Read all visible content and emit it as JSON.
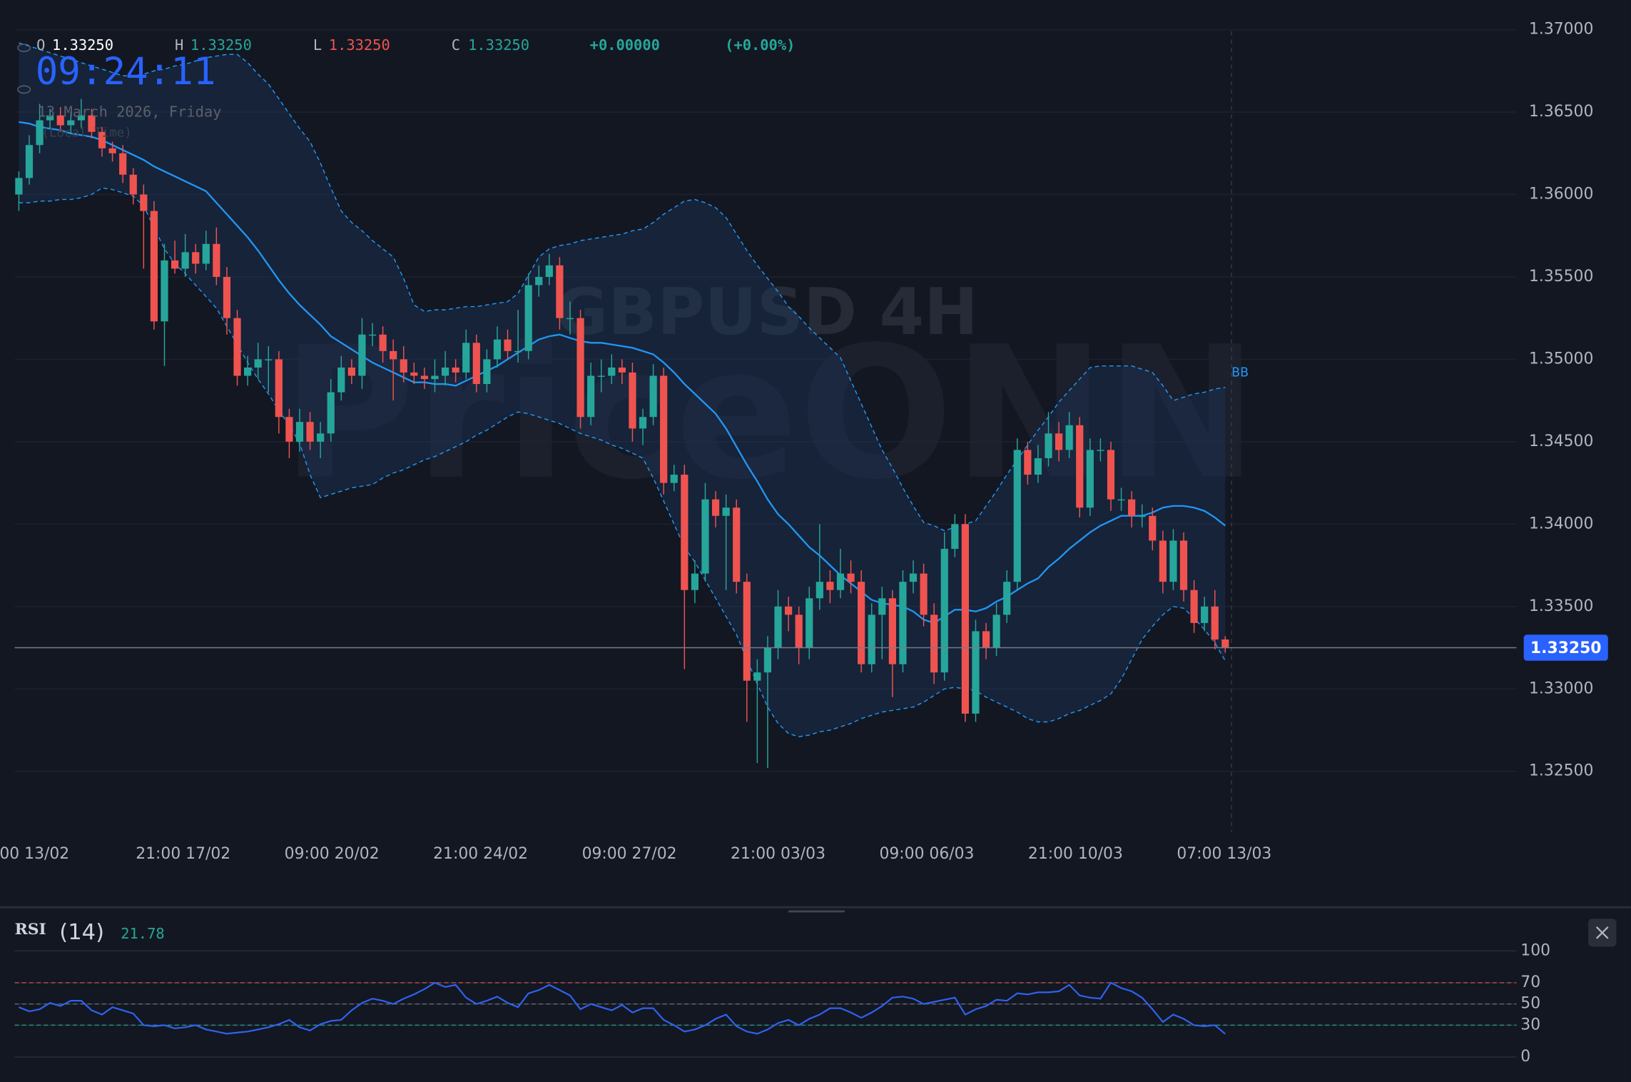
{
  "chart_data": {
    "type": "candlestick",
    "title": "GBPUSD 4H",
    "watermark": "PriceONN",
    "clock": "09:24:11",
    "date": "13 March 2026, Friday",
    "timezone": "(Local Time)",
    "legend": {
      "o_label": "O",
      "o": "1.33250",
      "h_label": "H",
      "h": "1.33250",
      "l_label": "L",
      "l": "1.33250",
      "c_label": "C",
      "c": "1.33250",
      "change": "+0.00000",
      "change_pct": "(+0.00%)"
    },
    "colors": {
      "up": "#26a69a",
      "down": "#ef5350"
    },
    "ylim": [
      1.3213,
      1.3718
    ],
    "yticks": [
      {
        "value": 1.37,
        "label": "1.37000"
      },
      {
        "value": 1.365,
        "label": "1.36500"
      },
      {
        "value": 1.36,
        "label": "1.36000"
      },
      {
        "value": 1.355,
        "label": "1.35500"
      },
      {
        "value": 1.35,
        "label": "1.35000"
      },
      {
        "value": 1.345,
        "label": "1.34500"
      },
      {
        "value": 1.34,
        "label": "1.34000"
      },
      {
        "value": 1.335,
        "label": "1.33500"
      },
      {
        "value": 1.33,
        "label": "1.33000"
      },
      {
        "value": 1.325,
        "label": "1.32500"
      }
    ],
    "grid": true,
    "xtick_labels": [
      "00 13/02",
      "21:00 17/02",
      "09:00 20/02",
      "21:00 24/02",
      "09:00 27/02",
      "21:00 03/03",
      "09:00 06/03",
      "21:00 10/03",
      "07:00 13/03"
    ],
    "last_price": {
      "value": 1.3325,
      "label": "1.33250"
    },
    "ohlc": [
      [
        1.36,
        1.3614,
        1.359,
        1.361
      ],
      [
        1.361,
        1.3636,
        1.3606,
        1.363
      ],
      [
        1.363,
        1.3655,
        1.3625,
        1.3645
      ],
      [
        1.3645,
        1.3652,
        1.364,
        1.3648
      ],
      [
        1.3648,
        1.3653,
        1.3638,
        1.3642
      ],
      [
        1.3642,
        1.365,
        1.3637,
        1.3645
      ],
      [
        1.3645,
        1.3658,
        1.364,
        1.3648
      ],
      [
        1.3648,
        1.3652,
        1.3634,
        1.3638
      ],
      [
        1.3638,
        1.3641,
        1.3623,
        1.3628
      ],
      [
        1.3628,
        1.3632,
        1.362,
        1.3625
      ],
      [
        1.3625,
        1.363,
        1.3607,
        1.3612
      ],
      [
        1.3612,
        1.3616,
        1.3594,
        1.36
      ],
      [
        1.36,
        1.3606,
        1.3555,
        1.359
      ],
      [
        1.359,
        1.3596,
        1.3518,
        1.3523
      ],
      [
        1.3523,
        1.357,
        1.3496,
        1.356
      ],
      [
        1.356,
        1.3572,
        1.3552,
        1.3555
      ],
      [
        1.3555,
        1.3576,
        1.355,
        1.3565
      ],
      [
        1.3565,
        1.357,
        1.3552,
        1.3558
      ],
      [
        1.3558,
        1.3578,
        1.3554,
        1.357
      ],
      [
        1.357,
        1.358,
        1.3545,
        1.355
      ],
      [
        1.355,
        1.3556,
        1.3515,
        1.3525
      ],
      [
        1.3525,
        1.353,
        1.3484,
        1.349
      ],
      [
        1.349,
        1.3502,
        1.3484,
        1.3495
      ],
      [
        1.3495,
        1.351,
        1.3488,
        1.35
      ],
      [
        1.35,
        1.3508,
        1.348,
        1.35
      ],
      [
        1.35,
        1.3505,
        1.3455,
        1.3465
      ],
      [
        1.3465,
        1.347,
        1.344,
        1.345
      ],
      [
        1.345,
        1.347,
        1.3444,
        1.3462
      ],
      [
        1.3462,
        1.3468,
        1.3445,
        1.345
      ],
      [
        1.345,
        1.3462,
        1.344,
        1.3455
      ],
      [
        1.3455,
        1.3488,
        1.345,
        1.348
      ],
      [
        1.348,
        1.3502,
        1.3475,
        1.3495
      ],
      [
        1.3495,
        1.35,
        1.3485,
        1.349
      ],
      [
        1.349,
        1.3525,
        1.3482,
        1.3515
      ],
      [
        1.3515,
        1.3522,
        1.3508,
        1.3515
      ],
      [
        1.3515,
        1.352,
        1.3498,
        1.3505
      ],
      [
        1.3505,
        1.3512,
        1.3475,
        1.35
      ],
      [
        1.35,
        1.3508,
        1.3486,
        1.3492
      ],
      [
        1.3492,
        1.3498,
        1.3485,
        1.349
      ],
      [
        1.349,
        1.3495,
        1.3482,
        1.3488
      ],
      [
        1.3488,
        1.35,
        1.348,
        1.349
      ],
      [
        1.349,
        1.3505,
        1.3484,
        1.3495
      ],
      [
        1.3495,
        1.35,
        1.3486,
        1.3492
      ],
      [
        1.3492,
        1.3518,
        1.3488,
        1.351
      ],
      [
        1.351,
        1.3515,
        1.348,
        1.3485
      ],
      [
        1.3485,
        1.3506,
        1.348,
        1.35
      ],
      [
        1.35,
        1.352,
        1.3495,
        1.3512
      ],
      [
        1.3512,
        1.3518,
        1.35,
        1.3505
      ],
      [
        1.3505,
        1.353,
        1.3498,
        1.3505
      ],
      [
        1.3505,
        1.3552,
        1.35,
        1.3545
      ],
      [
        1.3545,
        1.3557,
        1.3538,
        1.355
      ],
      [
        1.355,
        1.3564,
        1.3545,
        1.3557
      ],
      [
        1.3557,
        1.3562,
        1.3518,
        1.3525
      ],
      [
        1.3525,
        1.3535,
        1.3515,
        1.3525
      ],
      [
        1.3525,
        1.353,
        1.3458,
        1.3465
      ],
      [
        1.3465,
        1.3498,
        1.346,
        1.349
      ],
      [
        1.349,
        1.35,
        1.348,
        1.349
      ],
      [
        1.349,
        1.3503,
        1.3485,
        1.3495
      ],
      [
        1.3495,
        1.35,
        1.3485,
        1.3492
      ],
      [
        1.3492,
        1.3498,
        1.345,
        1.3458
      ],
      [
        1.3458,
        1.347,
        1.3448,
        1.3465
      ],
      [
        1.3465,
        1.3497,
        1.346,
        1.349
      ],
      [
        1.349,
        1.3495,
        1.3418,
        1.3425
      ],
      [
        1.3425,
        1.3436,
        1.342,
        1.343
      ],
      [
        1.343,
        1.3436,
        1.3312,
        1.336
      ],
      [
        1.336,
        1.3378,
        1.3352,
        1.337
      ],
      [
        1.337,
        1.3425,
        1.3365,
        1.3415
      ],
      [
        1.3415,
        1.342,
        1.3398,
        1.3405
      ],
      [
        1.3405,
        1.3418,
        1.336,
        1.341
      ],
      [
        1.341,
        1.3415,
        1.3358,
        1.3365
      ],
      [
        1.3365,
        1.337,
        1.328,
        1.3305
      ],
      [
        1.3305,
        1.3318,
        1.3255,
        1.331
      ],
      [
        1.331,
        1.3332,
        1.3252,
        1.3325
      ],
      [
        1.3325,
        1.336,
        1.3318,
        1.335
      ],
      [
        1.335,
        1.3356,
        1.3335,
        1.3345
      ],
      [
        1.3345,
        1.335,
        1.3315,
        1.3325
      ],
      [
        1.3325,
        1.3362,
        1.3318,
        1.3355
      ],
      [
        1.3355,
        1.34,
        1.3348,
        1.3365
      ],
      [
        1.3365,
        1.3372,
        1.3352,
        1.336
      ],
      [
        1.336,
        1.3385,
        1.3355,
        1.337
      ],
      [
        1.337,
        1.3378,
        1.3358,
        1.3365
      ],
      [
        1.3365,
        1.3372,
        1.331,
        1.3315
      ],
      [
        1.3315,
        1.3352,
        1.331,
        1.3345
      ],
      [
        1.3345,
        1.3362,
        1.3318,
        1.3355
      ],
      [
        1.3355,
        1.336,
        1.3295,
        1.3315
      ],
      [
        1.3315,
        1.3372,
        1.331,
        1.3365
      ],
      [
        1.3365,
        1.3378,
        1.3358,
        1.337
      ],
      [
        1.337,
        1.3376,
        1.3338,
        1.3345
      ],
      [
        1.3345,
        1.3352,
        1.3303,
        1.331
      ],
      [
        1.331,
        1.3395,
        1.3305,
        1.3385
      ],
      [
        1.3385,
        1.3406,
        1.338,
        1.34
      ],
      [
        1.34,
        1.3406,
        1.328,
        1.3285
      ],
      [
        1.3285,
        1.3342,
        1.328,
        1.3335
      ],
      [
        1.3335,
        1.334,
        1.3318,
        1.3325
      ],
      [
        1.3325,
        1.3352,
        1.332,
        1.3345
      ],
      [
        1.3345,
        1.3372,
        1.334,
        1.3365
      ],
      [
        1.3365,
        1.3452,
        1.336,
        1.3445
      ],
      [
        1.3445,
        1.345,
        1.3424,
        1.343
      ],
      [
        1.343,
        1.3448,
        1.3425,
        1.344
      ],
      [
        1.344,
        1.3468,
        1.3435,
        1.3455
      ],
      [
        1.3455,
        1.3462,
        1.3438,
        1.3445
      ],
      [
        1.3445,
        1.3468,
        1.344,
        1.346
      ],
      [
        1.346,
        1.3465,
        1.3404,
        1.341
      ],
      [
        1.341,
        1.3452,
        1.3405,
        1.3445
      ],
      [
        1.3445,
        1.3452,
        1.3438,
        1.3445
      ],
      [
        1.3445,
        1.345,
        1.3408,
        1.3415
      ],
      [
        1.3415,
        1.3422,
        1.3408,
        1.3415
      ],
      [
        1.3415,
        1.342,
        1.3398,
        1.3405
      ],
      [
        1.3405,
        1.3412,
        1.3398,
        1.3405
      ],
      [
        1.3405,
        1.341,
        1.3384,
        1.339
      ],
      [
        1.339,
        1.3396,
        1.3358,
        1.3365
      ],
      [
        1.3365,
        1.3397,
        1.336,
        1.339
      ],
      [
        1.339,
        1.3395,
        1.3353,
        1.336
      ],
      [
        1.336,
        1.3366,
        1.3334,
        1.334
      ],
      [
        1.334,
        1.3356,
        1.3335,
        1.335
      ],
      [
        1.335,
        1.336,
        1.3324,
        1.333
      ],
      [
        1.333,
        1.3332,
        1.3322,
        1.3325
      ]
    ],
    "bollinger": {
      "name": "BB",
      "color": "#2196f3",
      "fill": "#1e3a64",
      "upper": [
        1.3692,
        1.369,
        1.3688,
        1.3686,
        1.3684,
        1.3682,
        1.368,
        1.3678,
        1.3676,
        1.3674,
        1.3672,
        1.3672,
        1.3673,
        1.3675,
        1.3676,
        1.3678,
        1.3679,
        1.3681,
        1.3683,
        1.3684,
        1.3685,
        1.3685,
        1.368,
        1.3673,
        1.3667,
        1.3658,
        1.3649,
        1.364,
        1.3632,
        1.3619,
        1.3604,
        1.359,
        1.3583,
        1.3578,
        1.3572,
        1.3567,
        1.3562,
        1.3549,
        1.3533,
        1.3529,
        1.353,
        1.353,
        1.3531,
        1.3532,
        1.3532,
        1.3533,
        1.3534,
        1.3535,
        1.354,
        1.3551,
        1.3562,
        1.3567,
        1.3569,
        1.357,
        1.3572,
        1.3573,
        1.3574,
        1.3575,
        1.3576,
        1.3578,
        1.3579,
        1.3583,
        1.3588,
        1.3592,
        1.3596,
        1.3597,
        1.3595,
        1.3592,
        1.3586,
        1.3576,
        1.3566,
        1.3557,
        1.3549,
        1.3541,
        1.3532,
        1.3526,
        1.3519,
        1.3513,
        1.3507,
        1.3501,
        1.3487,
        1.3473,
        1.3459,
        1.3445,
        1.3434,
        1.3422,
        1.3411,
        1.3401,
        1.3399,
        1.3396,
        1.3398,
        1.34,
        1.3402,
        1.3411,
        1.342,
        1.343,
        1.3439,
        1.3448,
        1.3457,
        1.3465,
        1.3474,
        1.3481,
        1.3488,
        1.3495,
        1.3496,
        1.3496,
        1.3496,
        1.3496,
        1.3494,
        1.3492,
        1.3484,
        1.3475,
        1.3477,
        1.3479,
        1.348,
        1.3482,
        1.3483
      ],
      "middle": [
        1.3644,
        1.3643,
        1.3641,
        1.364,
        1.3639,
        1.3637,
        1.3636,
        1.3635,
        1.3633,
        1.363,
        1.3627,
        1.3624,
        1.3621,
        1.3617,
        1.3614,
        1.3611,
        1.3608,
        1.3605,
        1.3602,
        1.3595,
        1.3588,
        1.3581,
        1.3574,
        1.3566,
        1.3557,
        1.3548,
        1.354,
        1.3533,
        1.3527,
        1.3521,
        1.3514,
        1.351,
        1.3506,
        1.3502,
        1.3498,
        1.3495,
        1.3492,
        1.3489,
        1.3486,
        1.3486,
        1.3485,
        1.3485,
        1.3484,
        1.3487,
        1.349,
        1.3493,
        1.3496,
        1.35,
        1.3504,
        1.3508,
        1.3512,
        1.3514,
        1.3515,
        1.3513,
        1.3511,
        1.351,
        1.351,
        1.3509,
        1.3508,
        1.3507,
        1.3505,
        1.3503,
        1.3498,
        1.3492,
        1.3485,
        1.3479,
        1.3473,
        1.3467,
        1.3458,
        1.3447,
        1.3436,
        1.3426,
        1.3415,
        1.3406,
        1.34,
        1.3393,
        1.3386,
        1.3381,
        1.3375,
        1.3369,
        1.3364,
        1.3359,
        1.3354,
        1.3352,
        1.3351,
        1.335,
        1.3347,
        1.3342,
        1.334,
        1.3344,
        1.3348,
        1.3348,
        1.3347,
        1.3349,
        1.3353,
        1.3356,
        1.336,
        1.3364,
        1.3367,
        1.3374,
        1.3379,
        1.3385,
        1.339,
        1.3395,
        1.3399,
        1.3402,
        1.3405,
        1.3405,
        1.3405,
        1.3407,
        1.341,
        1.3411,
        1.3411,
        1.341,
        1.3408,
        1.3404,
        1.3399
      ],
      "lower": [
        1.3595,
        1.3595,
        1.3596,
        1.3596,
        1.3597,
        1.3597,
        1.3598,
        1.36,
        1.3604,
        1.3603,
        1.3601,
        1.3599,
        1.3593,
        1.358,
        1.3567,
        1.3558,
        1.3552,
        1.3545,
        1.3538,
        1.3531,
        1.352,
        1.3509,
        1.3498,
        1.3488,
        1.3479,
        1.3469,
        1.346,
        1.3449,
        1.343,
        1.3416,
        1.3418,
        1.342,
        1.3422,
        1.3423,
        1.3424,
        1.3428,
        1.3431,
        1.3433,
        1.3436,
        1.3439,
        1.3441,
        1.3444,
        1.3447,
        1.345,
        1.3454,
        1.3457,
        1.3461,
        1.3465,
        1.3468,
        1.3467,
        1.3465,
        1.3463,
        1.3461,
        1.3458,
        1.3455,
        1.3453,
        1.3451,
        1.3448,
        1.3446,
        1.3443,
        1.344,
        1.3428,
        1.3414,
        1.34,
        1.3386,
        1.3377,
        1.3366,
        1.3355,
        1.3344,
        1.3333,
        1.3318,
        1.3303,
        1.3289,
        1.3279,
        1.3273,
        1.3271,
        1.3272,
        1.3274,
        1.3275,
        1.3277,
        1.3279,
        1.3282,
        1.3284,
        1.3286,
        1.3287,
        1.3288,
        1.3289,
        1.3292,
        1.3296,
        1.33,
        1.3301,
        1.33,
        1.3299,
        1.3295,
        1.3292,
        1.3289,
        1.3286,
        1.3282,
        1.328,
        1.328,
        1.3282,
        1.3285,
        1.3287,
        1.329,
        1.3293,
        1.3297,
        1.3306,
        1.3318,
        1.333,
        1.3338,
        1.3345,
        1.335,
        1.3349,
        1.3343,
        1.3336,
        1.3328,
        1.3317
      ]
    },
    "rsi": {
      "name": "RSI",
      "period_label": "(14)",
      "value_label": "21.78",
      "color": "#2f62f0",
      "ylim": [
        0,
        100
      ],
      "yticks": [
        0,
        30,
        50,
        70,
        100
      ],
      "levels": [
        {
          "value": 70,
          "color": "#ef5350"
        },
        {
          "value": 50,
          "color": "#787b86"
        },
        {
          "value": 30,
          "color": "#26a69a"
        }
      ],
      "values": [
        47,
        43,
        45,
        51,
        48,
        53,
        53,
        44,
        40,
        47,
        44,
        41,
        30,
        29,
        30,
        27,
        28,
        30,
        26,
        24,
        22,
        23,
        24,
        26,
        28,
        31,
        35,
        28,
        25,
        31,
        34,
        35,
        44,
        51,
        55,
        53,
        50,
        55,
        59,
        64,
        70,
        66,
        68,
        56,
        50,
        53,
        57,
        51,
        47,
        60,
        63,
        68,
        63,
        58,
        45,
        50,
        47,
        44,
        49,
        42,
        46,
        46,
        35,
        30,
        24,
        26,
        30,
        36,
        40,
        29,
        24,
        22,
        26,
        32,
        35,
        30,
        36,
        40,
        46,
        46,
        42,
        37,
        42,
        48,
        56,
        57,
        55,
        50,
        52,
        54,
        56,
        40,
        45,
        48,
        54,
        53,
        60,
        59,
        61,
        61,
        62,
        68,
        58,
        56,
        55,
        70,
        65,
        62,
        56,
        45,
        33,
        40,
        36,
        30,
        29,
        30,
        21.78
      ]
    }
  }
}
